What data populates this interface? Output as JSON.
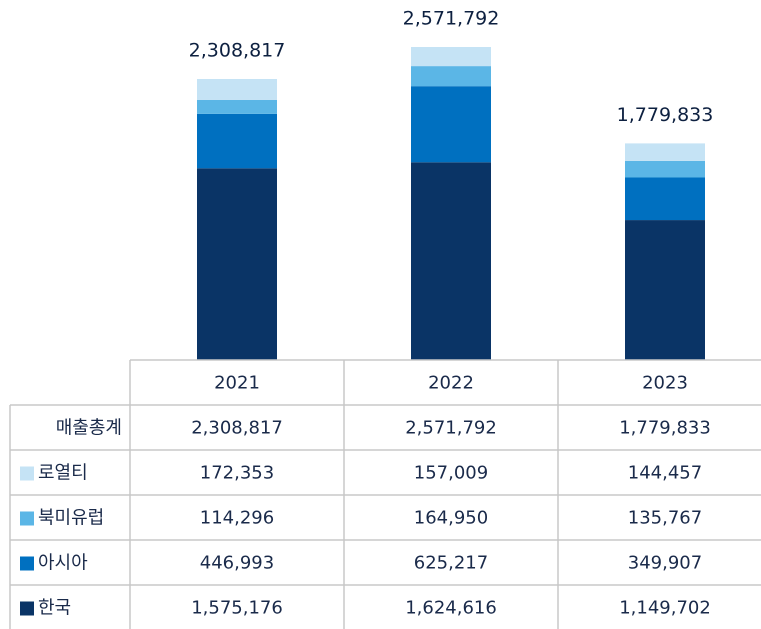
{
  "chart_data": {
    "type": "stacked-bar",
    "categories": [
      "2021",
      "2022",
      "2023"
    ],
    "totals": {
      "name": "매출총계",
      "values": [
        2308817,
        2571792,
        1779833
      ],
      "value_labels": [
        "2,308,817",
        "2,571,792",
        "1,779,833"
      ]
    },
    "series": [
      {
        "name": "로열티",
        "color": "#c5e3f5",
        "values": [
          172353,
          157009,
          144457
        ],
        "value_labels": [
          "172,353",
          "157,009",
          "144,457"
        ]
      },
      {
        "name": "북미유럽",
        "color": "#5bb6e6",
        "values": [
          114296,
          164950,
          135767
        ],
        "value_labels": [
          "114,296",
          "164,950",
          "135,767"
        ]
      },
      {
        "name": "아시아",
        "color": "#0070c0",
        "values": [
          446993,
          625217,
          349907
        ],
        "value_labels": [
          "446,993",
          "625,217",
          "349,907"
        ]
      },
      {
        "name": "한국",
        "color": "#0a3466",
        "values": [
          1575176,
          1624616,
          1149702
        ],
        "value_labels": [
          "1,575,176",
          "1,624,616",
          "1,149,702"
        ]
      }
    ]
  }
}
